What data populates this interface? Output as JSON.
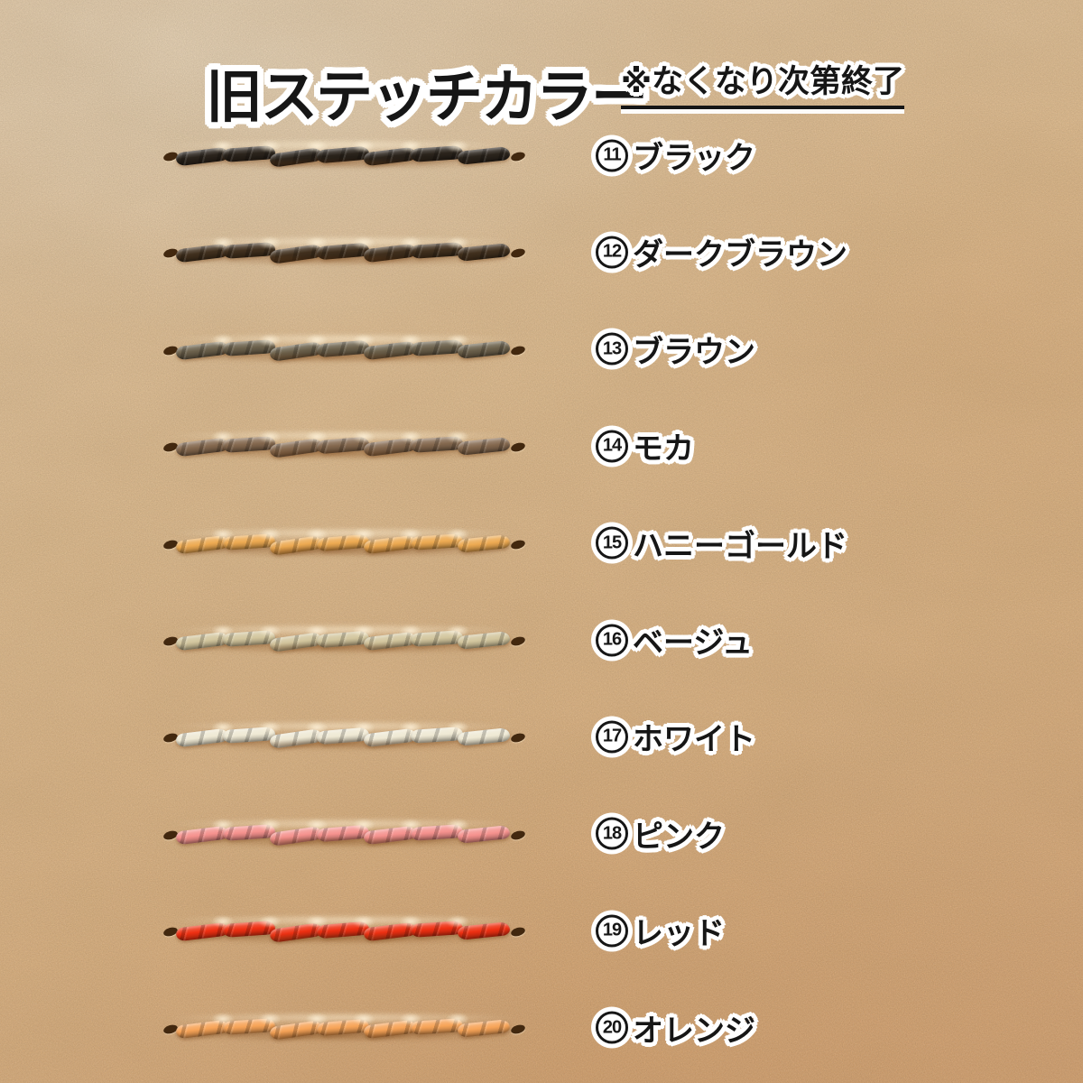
{
  "page": {
    "title": "旧ステッチカラー",
    "note": "※なくなり次第終了"
  },
  "colors": {
    "leather_light": "#f8d8ae",
    "leather_mid": "#eebc82",
    "leather_dark": "#e7aa70",
    "text": "#161616",
    "outline": "#ffffff",
    "hole": "#42280f"
  },
  "swatches": [
    {
      "number": "11",
      "label": "ブラック",
      "name": "black",
      "color": "#2b241c"
    },
    {
      "number": "12",
      "label": "ダークブラウン",
      "name": "dark-brown",
      "color": "#41301e"
    },
    {
      "number": "13",
      "label": "ブラウン",
      "name": "brown",
      "color": "#6b604b"
    },
    {
      "number": "14",
      "label": "モカ",
      "name": "mocha",
      "color": "#84684e"
    },
    {
      "number": "15",
      "label": "ハニーゴールド",
      "name": "honey-gold",
      "color": "#edaa52"
    },
    {
      "number": "16",
      "label": "ベージュ",
      "name": "beige",
      "color": "#d3c69e"
    },
    {
      "number": "17",
      "label": "ホワイト",
      "name": "white",
      "color": "#efe9d4"
    },
    {
      "number": "18",
      "label": "ピンク",
      "name": "pink",
      "color": "#f5928e"
    },
    {
      "number": "19",
      "label": "レッド",
      "name": "red",
      "color": "#ee3012"
    },
    {
      "number": "20",
      "label": "オレンジ",
      "name": "orange",
      "color": "#f7a458"
    }
  ]
}
